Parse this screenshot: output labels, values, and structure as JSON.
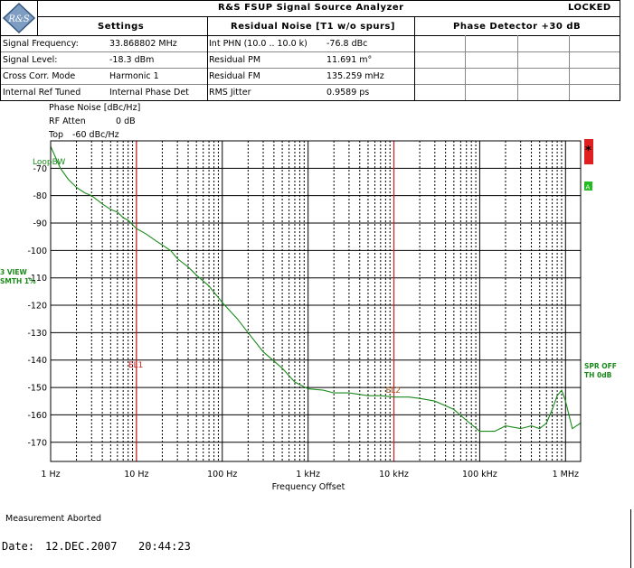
{
  "header": {
    "title": "R&S FSUP Signal Source Analyzer",
    "status": "LOCKED",
    "logo_text": "R&S"
  },
  "settings": {
    "title": "Settings",
    "rows": [
      {
        "label": "Signal Frequency:",
        "value": "33.868802 MHz"
      },
      {
        "label": "Signal Level:",
        "value": "-18.3 dBm"
      },
      {
        "label": "Cross Corr. Mode",
        "value": "Harmonic 1"
      },
      {
        "label": "Internal Ref Tuned",
        "value": "Internal Phase Det"
      }
    ]
  },
  "residual": {
    "title": "Residual Noise [T1 w/o spurs]",
    "rows": [
      {
        "label": "Int PHN (10.0 .. 10.0 k)",
        "value": "-76.8 dBc"
      },
      {
        "label": "Residual PM",
        "value": "11.691 m°"
      },
      {
        "label": "Residual FM",
        "value": "135.259 mHz"
      },
      {
        "label": "RMS Jitter",
        "value": "0.9589 ps"
      }
    ]
  },
  "phase_detector": {
    "title": "Phase Detector +30 dB"
  },
  "plot_meta": {
    "ylabel": "Phase Noise [dBc/Hz]",
    "rf_atten": "RF Atten",
    "rf_atten_value": "0 dB",
    "top": "Top",
    "top_value": "-60 dBc/Hz",
    "loopbw": "LoopBW",
    "left_note_1": "3 VIEW",
    "left_note_2": "SMTH 1%",
    "right_note_1": "SPR OFF",
    "right_note_2": "TH 0dB",
    "star": "*",
    "marker_a": "A"
  },
  "chart_data": {
    "type": "line",
    "xlabel": "Frequency Offset",
    "x_scale": "log",
    "xlim": [
      1,
      1500000
    ],
    "ylim": [
      -177,
      -60
    ],
    "x_ticks": [
      {
        "value": 1,
        "label": "1 Hz"
      },
      {
        "value": 10,
        "label": "10 Hz"
      },
      {
        "value": 100,
        "label": "100 Hz"
      },
      {
        "value": 1000,
        "label": "1 kHz"
      },
      {
        "value": 10000,
        "label": "10 kHz"
      },
      {
        "value": 100000,
        "label": "100 kHz"
      },
      {
        "value": 1000000,
        "label": "1 MHz"
      }
    ],
    "y_ticks": [
      -70,
      -80,
      -90,
      -100,
      -110,
      -120,
      -130,
      -140,
      -150,
      -160,
      -170
    ],
    "grid": true,
    "lines": [
      {
        "label": "EL1",
        "x": 10,
        "color": "#cc2222"
      },
      {
        "label": "EL2",
        "x": 10000,
        "color": "#cc2222"
      }
    ],
    "series": [
      {
        "color": "#1a8a1a",
        "x": [
          1,
          1.3,
          1.6,
          2,
          2.5,
          3,
          4,
          5,
          6,
          7,
          8,
          10,
          13,
          16,
          20,
          25,
          30,
          40,
          50,
          70,
          100,
          150,
          200,
          300,
          500,
          700,
          1000,
          1500,
          2000,
          3000,
          5000,
          7000,
          10000,
          15000,
          20000,
          30000,
          50000,
          70000,
          100000,
          150000,
          200000,
          300000,
          400000,
          500000,
          600000,
          700000,
          800000,
          900000,
          1000000,
          1200000,
          1500000
        ],
        "y": [
          -62,
          -70,
          -74,
          -77,
          -79,
          -80,
          -83,
          -85,
          -86,
          -88,
          -89,
          -92,
          -94,
          -96,
          -98,
          -100,
          -103,
          -106,
          -109,
          -113,
          -119,
          -125,
          -130,
          -137,
          -143,
          -148,
          -150.5,
          -151,
          -152,
          -152,
          -153,
          -153,
          -153.5,
          -153.5,
          -154,
          -155,
          -158,
          -162,
          -166,
          -166,
          -164,
          -165,
          -164,
          -165,
          -163,
          -158,
          -153,
          -151,
          -155,
          -165,
          -163
        ]
      }
    ]
  },
  "footer": {
    "message": "Measurement Aborted",
    "date_label": "Date:",
    "date": "12.DEC.2007",
    "time": "20:44:23"
  }
}
